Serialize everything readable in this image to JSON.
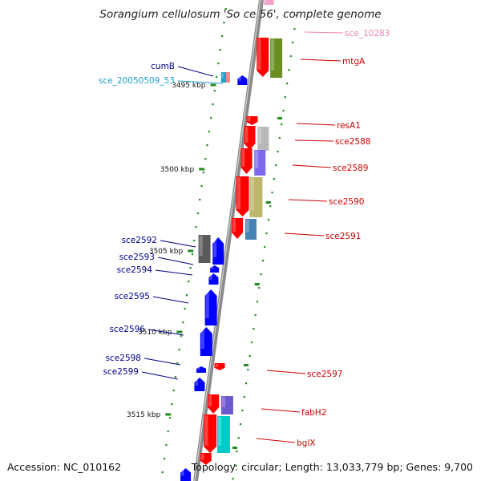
{
  "title": "Sorangium cellulosum 'So ce 56', complete genome",
  "footer": {
    "accession": "Accession: NC_010162",
    "summary": "Topology: circular; Length: 13,033,779 bp; Genes: 9,700"
  },
  "colors": {
    "backbone": "#8c8c8c",
    "forward_gene": "#ff0000",
    "reverse_gene": "#0000ff",
    "tick": "#228b22",
    "label_left": "#00008b",
    "label_right": "#cc0000",
    "label_cyan": "#1ea0c8",
    "label_pink": "#ee82b4"
  },
  "scale_labels": [
    "3495 kbp",
    "3500 kbp",
    "3505 kbp",
    "3510 kbp",
    "3515 kbp"
  ],
  "labels_right": [
    {
      "text": "sce_10283",
      "color": "#ee82b4"
    },
    {
      "text": "mtgA",
      "color": "#cc0000"
    },
    {
      "text": "resA1",
      "color": "#cc0000"
    },
    {
      "text": "sce2588",
      "color": "#cc0000"
    },
    {
      "text": "sce2589",
      "color": "#cc0000"
    },
    {
      "text": "sce2590",
      "color": "#cc0000"
    },
    {
      "text": "sce2591",
      "color": "#cc0000"
    },
    {
      "text": "sce2597",
      "color": "#cc0000"
    },
    {
      "text": "fabH2",
      "color": "#cc0000"
    },
    {
      "text": "bglX",
      "color": "#cc0000"
    }
  ],
  "labels_left": [
    {
      "text": "cumB",
      "color": "#00008b"
    },
    {
      "text": "sce_20050509_53",
      "color": "#1ea0c8"
    },
    {
      "text": "sce2592",
      "color": "#00008b"
    },
    {
      "text": "sce2593",
      "color": "#00008b"
    },
    {
      "text": "sce2594",
      "color": "#00008b"
    },
    {
      "text": "sce2595",
      "color": "#00008b"
    },
    {
      "text": "sce2596",
      "color": "#00008b"
    },
    {
      "text": "sce2598",
      "color": "#00008b"
    },
    {
      "text": "sce2599",
      "color": "#00008b"
    }
  ]
}
